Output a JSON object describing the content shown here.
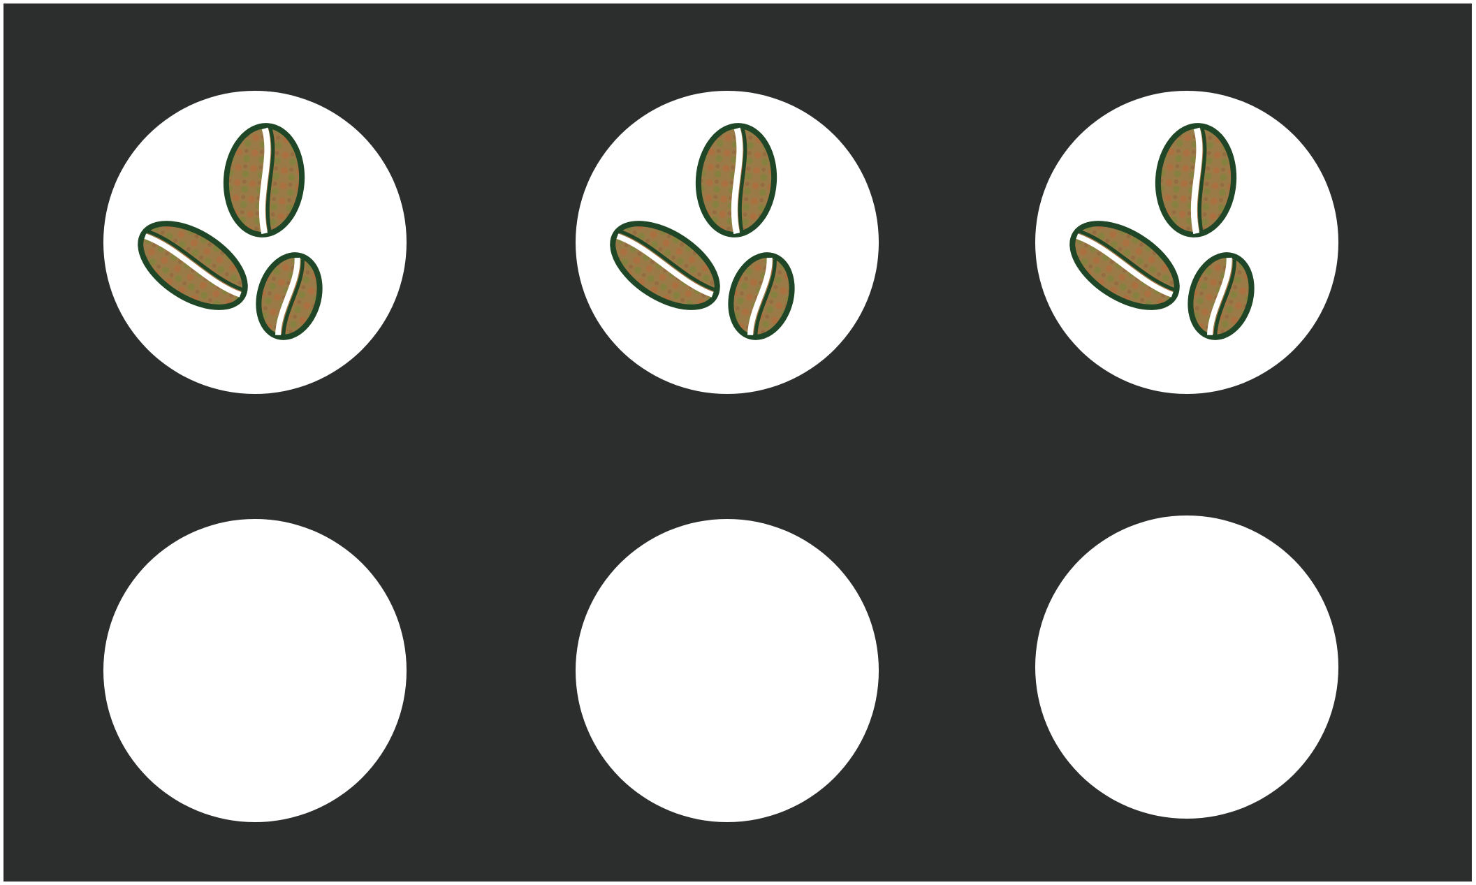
{
  "loyalty_card": {
    "stamps_total": 6,
    "stamps_filled": 3,
    "colors": {
      "card_background": "#2c2e2e",
      "slot_background": "#ffffff",
      "bean_fill": "#9a7a46",
      "bean_outline": "#1f4626",
      "bean_spots": "#c0643a"
    },
    "stamps": [
      {
        "filled": true,
        "icon": "coffee-beans-icon"
      },
      {
        "filled": true,
        "icon": "coffee-beans-icon"
      },
      {
        "filled": true,
        "icon": "coffee-beans-icon"
      },
      {
        "filled": false,
        "icon": ""
      },
      {
        "filled": false,
        "icon": ""
      },
      {
        "filled": false,
        "icon": ""
      }
    ]
  }
}
